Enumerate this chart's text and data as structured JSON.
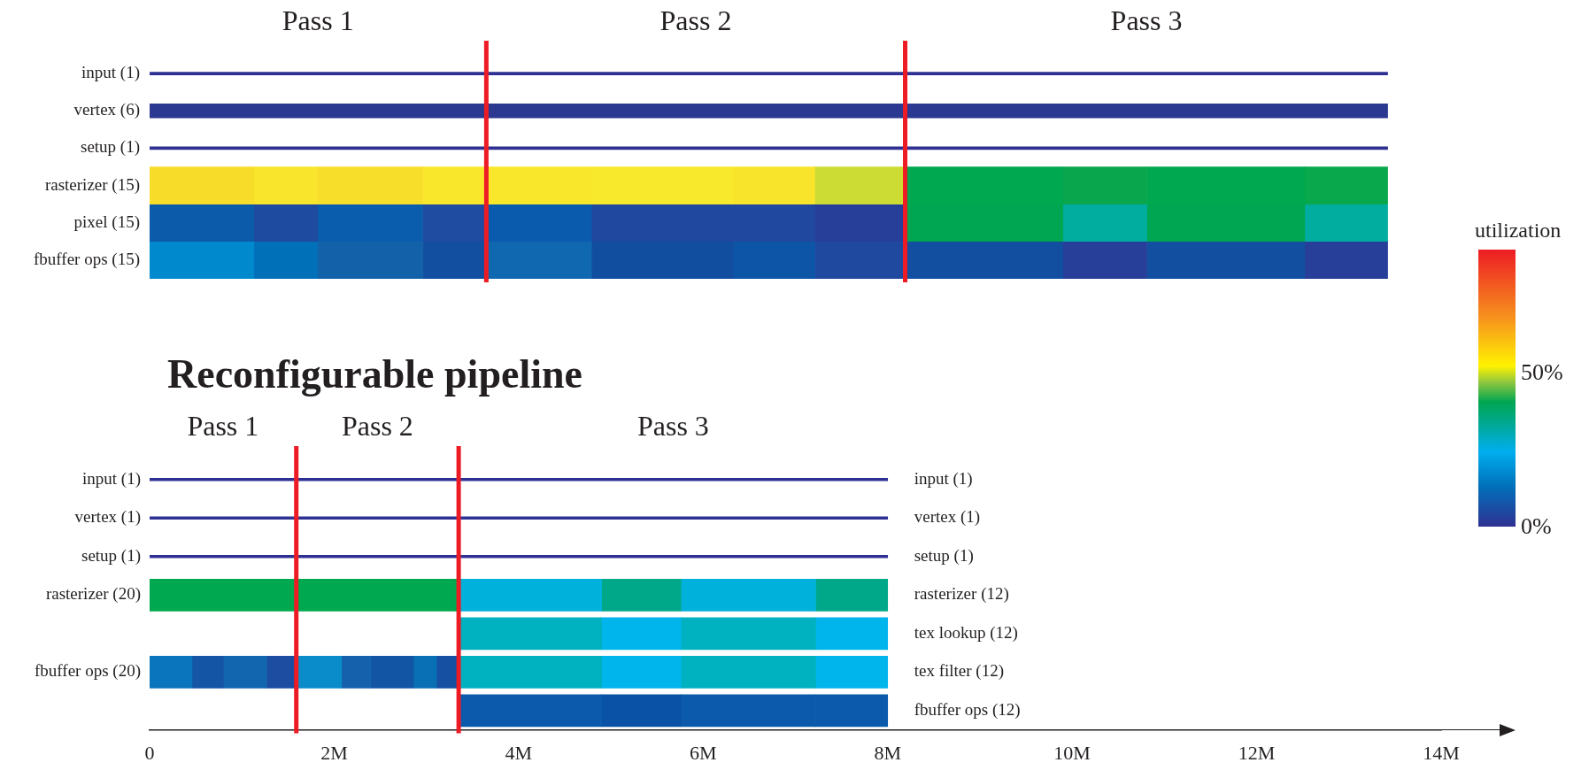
{
  "chart_data": [
    {
      "type": "bar",
      "orientation": "horizontal",
      "stacked": true,
      "tick_labels": "y",
      "xlim": [
        0,
        14
      ],
      "categories": [
        "input (1)",
        "vertex (6)",
        "setup (1)",
        "rasterizer (15)",
        "pixel (15)",
        "fbuffer ops (15)"
      ],
      "series": [
        {
          "values": [
            13.42,
            13.42,
            13.42,
            1.13,
            1.13,
            1.13
          ],
          "colors": [
            "#2e3192",
            "#2b3990",
            "#2e3192",
            "#f7dc2a",
            "#0b5baa",
            "#0089cc"
          ]
        },
        {
          "values": [
            null,
            null,
            null,
            0.69,
            0.69,
            0.69
          ],
          "colors": [
            null,
            null,
            null,
            "#f8e52c",
            "#1e4a9f",
            "#0070b8"
          ]
        },
        {
          "values": [
            null,
            null,
            null,
            1.14,
            1.14,
            1.14
          ],
          "colors": [
            null,
            null,
            null,
            "#f7de2a",
            "#0a5cad",
            "#1261a9"
          ]
        },
        {
          "values": [
            null,
            null,
            null,
            1.83,
            0.69,
            0.69
          ],
          "colors": [
            null,
            null,
            null,
            "#f9e72b",
            "#1f4ca0",
            "#134fa0"
          ]
        },
        {
          "values": [
            null,
            null,
            null,
            1.54,
            1.14,
            1.14
          ],
          "colors": [
            null,
            null,
            null,
            "#f9e92d",
            "#0a5aae",
            "#1068b0"
          ]
        },
        {
          "values": [
            null,
            null,
            null,
            0.88,
            2.42,
            1.54
          ],
          "colors": [
            null,
            null,
            null,
            "#f8e42b",
            "#20489f",
            "#124ea0"
          ]
        },
        {
          "values": [
            null,
            null,
            null,
            0.98,
            0.98,
            0.88
          ],
          "colors": [
            null,
            null,
            null,
            "#cddc35",
            "#273f98",
            "#0d55a6"
          ]
        },
        {
          "values": [
            null,
            null,
            null,
            1.71,
            1.71,
            0.98
          ],
          "colors": [
            null,
            null,
            null,
            "#00a84f",
            "#00a651",
            "#1f489f"
          ]
        },
        {
          "values": [
            null,
            null,
            null,
            0.91,
            0.91,
            1.71
          ],
          "colors": [
            null,
            null,
            null,
            "#0aa64d",
            "#00ad9f",
            "#124fa1"
          ]
        },
        {
          "values": [
            null,
            null,
            null,
            1.71,
            1.71,
            0.91
          ],
          "colors": [
            null,
            null,
            null,
            "#00a84f",
            "#00a651",
            "#273f98"
          ]
        },
        {
          "values": [
            null,
            null,
            null,
            0.9,
            0.9,
            1.71
          ],
          "colors": [
            null,
            null,
            null,
            "#0aa84c",
            "#00ad9f",
            "#134fa0"
          ]
        },
        {
          "values": [
            null,
            null,
            null,
            null,
            null,
            0.9
          ],
          "colors": [
            null,
            null,
            null,
            null,
            null,
            "#273f98"
          ]
        }
      ],
      "ref_lines": [
        {
          "axis": "x",
          "value": 3.65,
          "color": "#ed1c24"
        },
        {
          "axis": "x",
          "value": 8.19,
          "color": "#ed1c24"
        }
      ],
      "annotations": [
        "Pass 1",
        "Pass 2",
        "Pass 3"
      ],
      "clabel": "utilization",
      "clim": [
        0,
        90
      ],
      "cticks": [
        {
          "value": 0,
          "label": "0%"
        },
        {
          "value": 50,
          "label": "50%"
        }
      ]
    },
    {
      "type": "bar",
      "orientation": "horizontal",
      "stacked": true,
      "title": "Reconfigurable pipeline",
      "xlim": [
        0,
        14
      ],
      "xticks": [
        0,
        {
          "value": 2,
          "label": "2M"
        },
        {
          "value": 4,
          "label": "4M"
        },
        {
          "value": 6,
          "label": "6M"
        },
        {
          "value": 8,
          "label": "8M"
        },
        {
          "value": 10,
          "label": "10M"
        },
        {
          "value": 12,
          "label": "12M"
        },
        {
          "value": 14,
          "label": "14M"
        }
      ],
      "categories": [
        "input (1)",
        "vertex (1)",
        "setup (1)",
        "rasterizer (12)",
        "tex lookup (12)",
        "tex filter (12)",
        "fbuffer ops (12)"
      ],
      "series": [
        {
          "values": [
            8,
            8,
            8,
            3.35,
            1.55,
            0.46,
            1.55
          ],
          "base": [
            null,
            null,
            null,
            null,
            3.35,
            null,
            3.35
          ],
          "colors": [
            "#2e3192",
            "#2e3192",
            "#2e3192",
            "#00a84f",
            "#00b1c0",
            "#0a74bc",
            "#0b5aab"
          ]
        },
        {
          "values": [
            null,
            null,
            null,
            1.55,
            0.86,
            0.34,
            0.86
          ],
          "colors": [
            null,
            null,
            null,
            "#00b1dc",
            "#00b4ec",
            "#1455a5",
            "#0a52a5"
          ]
        },
        {
          "values": [
            null,
            null,
            null,
            0.86,
            1.46,
            0.47,
            1.46
          ],
          "colors": [
            null,
            null,
            null,
            "#00a88a",
            "#00b1c0",
            "#1266b0",
            "#0b5aab"
          ]
        },
        {
          "values": [
            null,
            null,
            null,
            1.46,
            0.78,
            0.32,
            0.78
          ],
          "colors": [
            null,
            null,
            null,
            "#00b1dc",
            "#00b4ec",
            "#1c4da1",
            "#0b5aab"
          ]
        },
        {
          "values": [
            null,
            null,
            null,
            0.78,
            null,
            0.49,
            null
          ],
          "colors": [
            null,
            null,
            null,
            "#00a88a",
            null,
            "#0a8ccb",
            null
          ]
        },
        {
          "values": [
            null,
            null,
            null,
            null,
            null,
            0.32,
            null
          ],
          "colors": [
            null,
            null,
            null,
            null,
            null,
            "#1561ac",
            null
          ]
        },
        {
          "values": [
            null,
            null,
            null,
            null,
            null,
            0.46,
            null
          ],
          "colors": [
            null,
            null,
            null,
            null,
            null,
            "#1255a5",
            null
          ]
        },
        {
          "values": [
            null,
            null,
            null,
            null,
            null,
            0.25,
            null
          ],
          "colors": [
            null,
            null,
            null,
            null,
            null,
            "#0a70b6",
            null
          ]
        },
        {
          "values": [
            null,
            null,
            null,
            null,
            null,
            0.24,
            null
          ],
          "colors": [
            null,
            null,
            null,
            null,
            null,
            "#1550a2",
            null
          ]
        },
        {
          "values": [
            null,
            null,
            null,
            null,
            null,
            1.55,
            null
          ],
          "colors": [
            null,
            null,
            null,
            null,
            null,
            "#00b1c0",
            null
          ]
        },
        {
          "values": [
            null,
            null,
            null,
            null,
            null,
            0.86,
            null
          ],
          "colors": [
            null,
            null,
            null,
            null,
            null,
            "#00b4ec",
            null
          ]
        },
        {
          "values": [
            null,
            null,
            null,
            null,
            null,
            1.46,
            null
          ],
          "colors": [
            null,
            null,
            null,
            null,
            null,
            "#00b1c0",
            null
          ]
        },
        {
          "values": [
            null,
            null,
            null,
            null,
            null,
            0.78,
            null
          ],
          "colors": [
            null,
            null,
            null,
            null,
            null,
            "#00b4ec",
            null
          ]
        }
      ],
      "ref_lines": [
        {
          "axis": "x",
          "value": 1.59,
          "color": "#ed1c24"
        },
        {
          "axis": "x",
          "value": 3.35,
          "color": "#ed1c24"
        }
      ],
      "annotations": [
        "Pass 1",
        "Pass 2",
        "Pass 3",
        "input (1)",
        "vertex (1)",
        "setup (1)",
        "rasterizer (20)",
        "fbuffer ops (20)"
      ]
    }
  ]
}
